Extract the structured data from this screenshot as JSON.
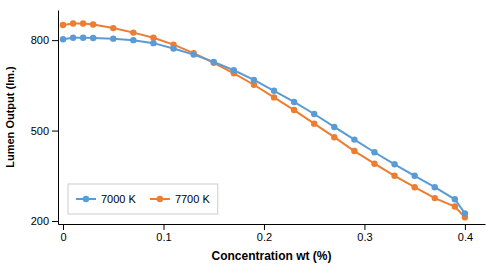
{
  "chart_data": {
    "type": "line",
    "x": [
      0.0,
      0.01,
      0.02,
      0.03,
      0.05,
      0.07,
      0.09,
      0.11,
      0.13,
      0.15,
      0.17,
      0.19,
      0.21,
      0.23,
      0.25,
      0.27,
      0.29,
      0.31,
      0.33,
      0.35,
      0.37,
      0.39,
      0.4
    ],
    "series": [
      {
        "name": "7000 K",
        "color": "#5B9BD5",
        "values": [
          803,
          808,
          808,
          807,
          805,
          800,
          790,
          772,
          752,
          728,
          700,
          668,
          632,
          595,
          555,
          512,
          470,
          428,
          388,
          350,
          312,
          272,
          225
        ]
      },
      {
        "name": "7700 K",
        "color": "#ED7D31",
        "values": [
          850,
          855,
          855,
          852,
          840,
          825,
          808,
          785,
          757,
          725,
          690,
          652,
          610,
          568,
          523,
          478,
          432,
          390,
          350,
          312,
          276,
          248,
          212
        ]
      }
    ],
    "marker": "circle",
    "xlabel": "Concentration wt (%)",
    "ylabel": "Lumen Output (lm.)",
    "xlim": [
      -0.005,
      0.42
    ],
    "ylim": [
      190,
      900
    ],
    "xticks": [
      0,
      0.1,
      0.2,
      0.3,
      0.4
    ],
    "yticks": [
      200,
      500,
      800
    ],
    "grid": false,
    "legend": "lower left"
  }
}
